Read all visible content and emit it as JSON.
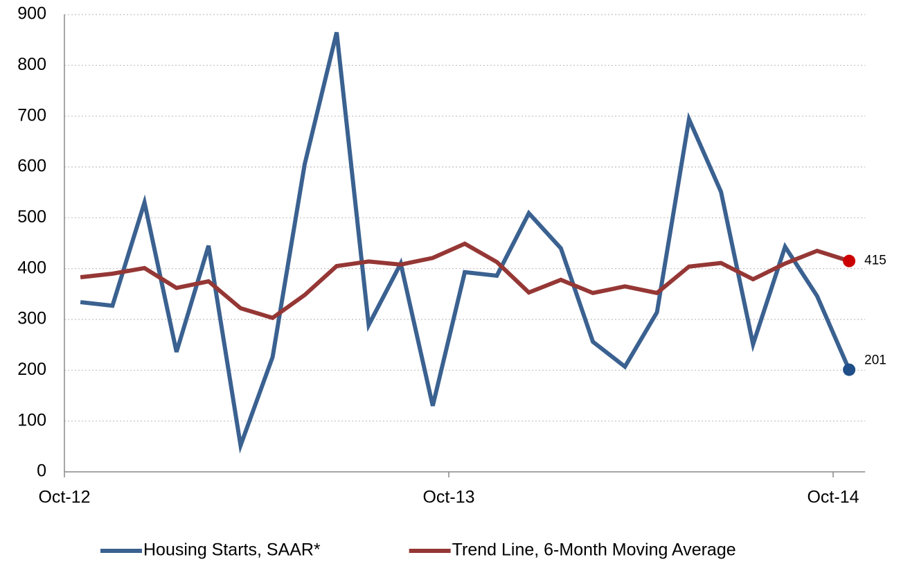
{
  "chart_data": {
    "type": "line",
    "categories": [
      "Oct-12",
      null,
      null,
      null,
      null,
      null,
      null,
      null,
      null,
      null,
      null,
      null,
      "Oct-13",
      null,
      null,
      null,
      null,
      null,
      null,
      null,
      null,
      null,
      null,
      null,
      "Oct-14"
    ],
    "series": [
      {
        "name": "Housing Starts, SAAR*",
        "color": "#3a6190",
        "values": [
          334,
          327,
          530,
          236,
          445,
          52,
          226,
          605,
          865,
          289,
          410,
          130,
          393,
          386,
          509,
          440,
          256,
          207,
          314,
          694,
          551,
          251,
          443,
          346,
          201
        ],
        "label_last": true,
        "marker_color": "#1f4e89"
      },
      {
        "name": "Trend Line, 6-Month Moving Average",
        "color": "#953735",
        "values": [
          383,
          390,
          401,
          362,
          375,
          322,
          303,
          348,
          405,
          414,
          408,
          421,
          449,
          413,
          353,
          378,
          352,
          365,
          352,
          404,
          411,
          379,
          410,
          435,
          415
        ],
        "label_last": true,
        "marker_color": "#cc0000"
      }
    ],
    "ylim": [
      0,
      900
    ],
    "yticks": [
      0,
      100,
      200,
      300,
      400,
      500,
      600,
      700,
      800,
      900
    ],
    "grid": true,
    "legend": "bottom"
  }
}
